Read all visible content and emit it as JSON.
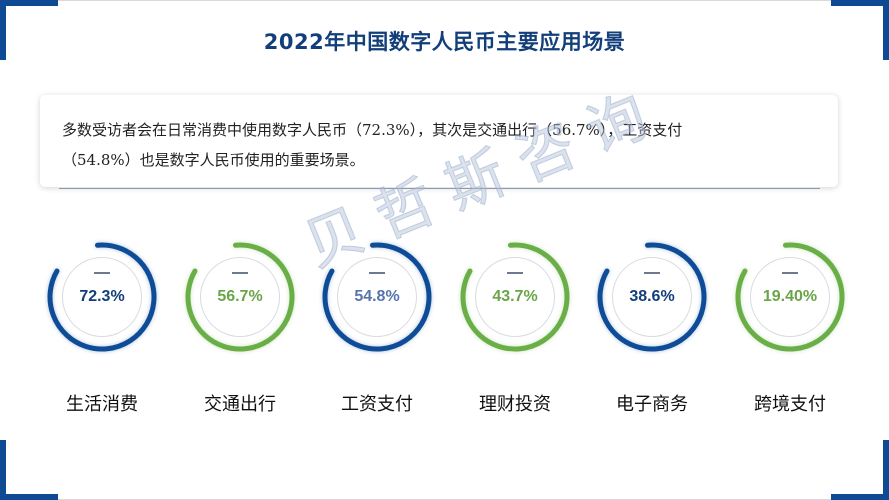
{
  "title": "2022年中国数字人民币主要应用场景",
  "summary": {
    "line1": "多数受访者会在日常消费中使用数字人民币（72.3%），其次是交通出行（56.7%），工资支付",
    "line2": "（54.8%）也是数字人民币使用的重要场景。"
  },
  "watermark": "贝哲斯咨询",
  "colors": {
    "blue": "#0F4C97",
    "green": "#6AAE47",
    "title": "#123F7A",
    "corner": "#0F4A94"
  },
  "metrics": [
    {
      "label": "生活消费",
      "value": "72.3%",
      "color": "blue",
      "text_color": "#123F7A"
    },
    {
      "label": "交通出行",
      "value": "56.7%",
      "color": "green",
      "text_color": "#6AA54A"
    },
    {
      "label": "工资支付",
      "value": "54.8%",
      "color": "blue",
      "text_color": "#5874AC"
    },
    {
      "label": "理财投资",
      "value": "43.7%",
      "color": "green",
      "text_color": "#6AA54A"
    },
    {
      "label": "电子商务",
      "value": "38.6%",
      "color": "blue",
      "text_color": "#123F7A"
    },
    {
      "label": "跨境支付",
      "value": "19.40%",
      "color": "green",
      "text_color": "#6AA54A"
    }
  ],
  "chart_data": {
    "type": "table",
    "title": "2022年中国数字人民币主要应用场景",
    "categories": [
      "生活消费",
      "交通出行",
      "工资支付",
      "理财投资",
      "电子商务",
      "跨境支付"
    ],
    "values": [
      72.3,
      56.7,
      54.8,
      43.7,
      38.6,
      19.4
    ],
    "unit": "%"
  }
}
